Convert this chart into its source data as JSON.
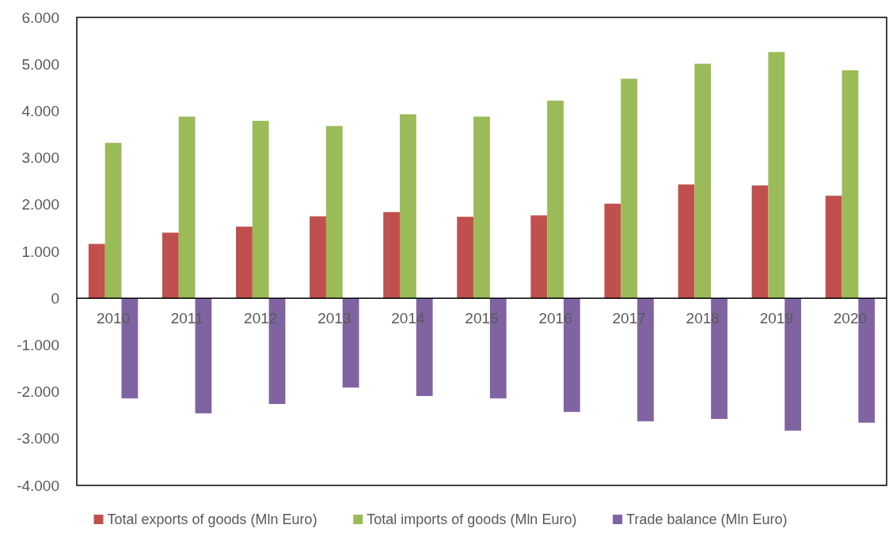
{
  "chart_data": {
    "type": "bar",
    "categories": [
      "2010",
      "2011",
      "2012",
      "2013",
      "2014",
      "2015",
      "2016",
      "2017",
      "2018",
      "2019",
      "2020"
    ],
    "series": [
      {
        "name": "Total exports of goods (Mln Euro)",
        "color": "#c0504d",
        "values": [
          1160,
          1400,
          1530,
          1750,
          1840,
          1740,
          1770,
          2020,
          2430,
          2410,
          2190
        ]
      },
      {
        "name": "Total imports of goods (Mln Euro)",
        "color": "#9bbb59",
        "values": [
          3320,
          3880,
          3790,
          3680,
          3930,
          3880,
          4220,
          4690,
          5010,
          5260,
          4870
        ]
      },
      {
        "name": "Trade balance (Mln Euro)",
        "color": "#8064a2",
        "values": [
          -2140,
          -2460,
          -2260,
          -1910,
          -2090,
          -2140,
          -2430,
          -2630,
          -2580,
          -2830,
          -2660
        ]
      }
    ],
    "ylim": [
      -4000,
      6000
    ],
    "yticks": [
      {
        "value": -4000,
        "label": "-4.000"
      },
      {
        "value": -3000,
        "label": "-3.000"
      },
      {
        "value": -2000,
        "label": "-2.000"
      },
      {
        "value": -1000,
        "label": "-1.000"
      },
      {
        "value": 0,
        "label": "0"
      },
      {
        "value": 1000,
        "label": "1.000"
      },
      {
        "value": 2000,
        "label": "2.000"
      },
      {
        "value": 3000,
        "label": "3.000"
      },
      {
        "value": 4000,
        "label": "4.000"
      },
      {
        "value": 5000,
        "label": "5.000"
      },
      {
        "value": 6000,
        "label": "6.000"
      }
    ],
    "legend": "bottom"
  }
}
